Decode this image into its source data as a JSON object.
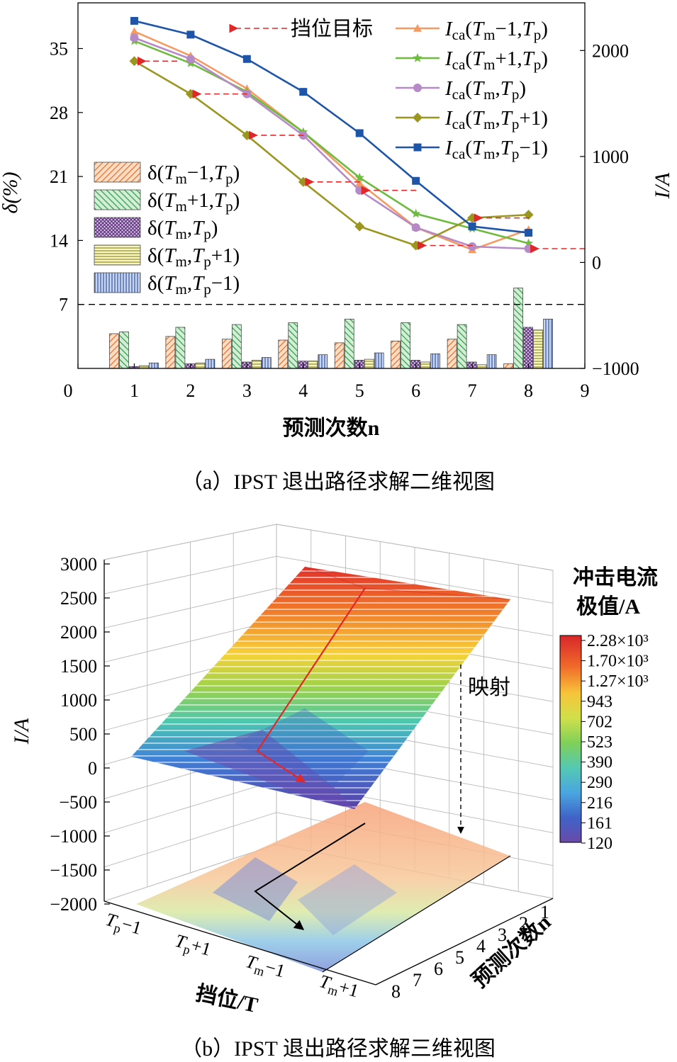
{
  "chart_data": [
    {
      "type": "bar+line",
      "caption": "（a）IPST 退出路径求解二维视图",
      "xlabel": "预测次数n",
      "ylabel_left": "δ(%)",
      "ylabel_right": "I/A",
      "x_ticks": [
        "0",
        "1",
        "2",
        "3",
        "4",
        "5",
        "6",
        "7",
        "8",
        "9"
      ],
      "y_left_ticks": [
        "7",
        "14",
        "21",
        "28",
        "35"
      ],
      "y_right_ticks": [
        "−1000",
        "0",
        "1000",
        "2000"
      ],
      "xlim": [
        0,
        9
      ],
      "ylim_left": [
        0,
        40
      ],
      "ylim_right": [
        -1000,
        2450
      ],
      "reference_line_left": 7,
      "annotation": "挡位目标",
      "categories": [
        1,
        2,
        3,
        4,
        5,
        6,
        7,
        8
      ],
      "bar_series": [
        {
          "name": "δ(Tm−1,Tp)",
          "color": "#f2a673",
          "pattern": "hatch",
          "values": [
            3.8,
            3.5,
            3.2,
            3.1,
            2.8,
            3.0,
            3.2,
            0.5
          ]
        },
        {
          "name": "δ(Tm+1,Tp)",
          "color": "#7fc88a",
          "pattern": "hatch",
          "values": [
            4.0,
            4.5,
            4.8,
            5.0,
            5.4,
            5.0,
            4.8,
            8.8
          ]
        },
        {
          "name": "δ(Tm,Tp)",
          "color": "#b58ac7",
          "pattern": "cross",
          "values": [
            0.2,
            0.5,
            0.7,
            0.8,
            0.9,
            0.9,
            0.7,
            4.5
          ]
        },
        {
          "name": "δ(Tm,Tp+1)",
          "color": "#f2ee9a",
          "pattern": "horizontal",
          "values": [
            0.3,
            0.6,
            0.9,
            0.8,
            1.0,
            0.7,
            0.4,
            4.2
          ]
        },
        {
          "name": "δ(Tm,Tp−1)",
          "color": "#9bb3e6",
          "pattern": "vertical",
          "values": [
            0.6,
            1.0,
            1.2,
            1.5,
            1.7,
            1.6,
            1.5,
            5.4
          ]
        }
      ],
      "line_series": [
        {
          "name": "Ica(Tm−1,Tp)",
          "color": "#f59a62",
          "marker": "triangle",
          "values": [
            2180,
            1950,
            1640,
            1230,
            750,
            330,
            120,
            310
          ]
        },
        {
          "name": "Ica(Tm+1,Tp)",
          "color": "#6dbb3f",
          "marker": "star",
          "values": [
            2090,
            1880,
            1610,
            1230,
            800,
            460,
            320,
            180
          ]
        },
        {
          "name": "Ica(Tm,Tp)",
          "color": "#b58ac7",
          "marker": "circle",
          "values": [
            2120,
            1920,
            1590,
            1200,
            680,
            330,
            150,
            130
          ]
        },
        {
          "name": "Ica(Tm,Tp+1)",
          "color": "#9a9620",
          "marker": "diamond",
          "values": [
            1900,
            1590,
            1200,
            760,
            340,
            160,
            420,
            450
          ]
        },
        {
          "name": "Ica(Tm,Tp−1)",
          "color": "#1f55a8",
          "marker": "square",
          "values": [
            2280,
            2150,
            1920,
            1610,
            1220,
            770,
            340,
            280
          ]
        }
      ]
    },
    {
      "type": "surface3d",
      "caption": "（b）IPST 退出路径求解三维视图",
      "zlabel": "I/A",
      "xlabel": "挡位/T",
      "ylabel": "预测次数n",
      "z_ticks": [
        "3000",
        "2500",
        "2000",
        "1500",
        "1000",
        "500",
        "0",
        "−500",
        "−1000",
        "−1500",
        "−2000"
      ],
      "x_ticks": [
        "Tp−1",
        "Tp+1",
        "Tm−1",
        "Tm+1"
      ],
      "y_ticks": [
        "1",
        "2",
        "3",
        "4",
        "5",
        "6",
        "7",
        "8"
      ],
      "colorbar_title": "冲击电流\n极值/A",
      "colorbar_ticks": [
        "2.28×10³",
        "1.70×10³",
        "1.27×10³",
        "943",
        "702",
        "523",
        "390",
        "290",
        "216",
        "161",
        "120"
      ],
      "annotation": "映射"
    }
  ],
  "colors": {
    "line_d": "#000000",
    "arrow_red": "#e0282a"
  }
}
